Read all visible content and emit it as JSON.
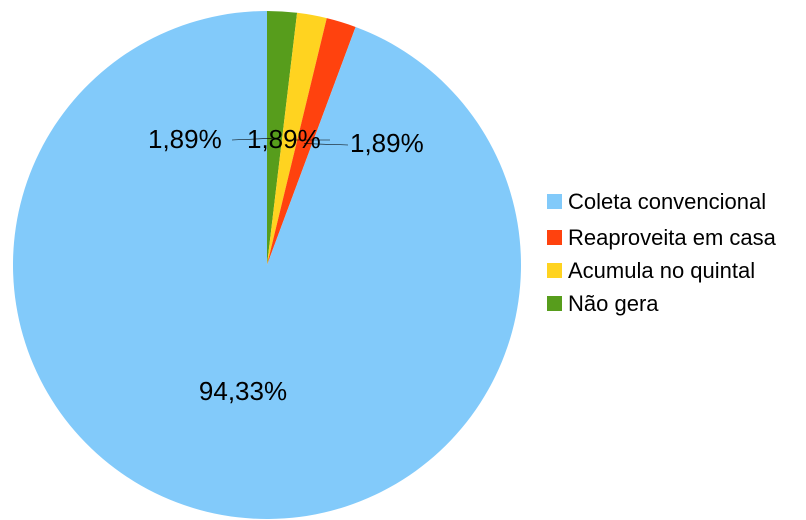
{
  "chart_data": {
    "type": "pie",
    "slices": [
      {
        "name": "Coleta convencional",
        "value": 94.33,
        "label": "94,33%",
        "color": "#82CAFA"
      },
      {
        "name": "Reaproveita em casa",
        "value": 1.89,
        "label": "1,89%",
        "color": "#FF420E"
      },
      {
        "name": "Acumula no quintal",
        "value": 1.89,
        "label": "1,89%",
        "color": "#FFD320"
      },
      {
        "name": "Não gera",
        "value": 1.89,
        "label": "1,89%",
        "color": "#579D1C"
      }
    ],
    "legend_position": "right"
  }
}
